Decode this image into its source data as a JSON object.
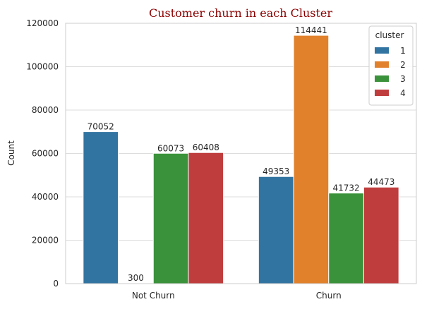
{
  "chart_data": {
    "type": "bar",
    "title": "Customer churn in each Cluster",
    "title_color": "#8b0000",
    "xlabel": "",
    "ylabel": "Count",
    "ylim": [
      0,
      120000
    ],
    "yticks": [
      0,
      20000,
      40000,
      60000,
      80000,
      100000,
      120000
    ],
    "grid": "horizontal",
    "legend_position": "top-right",
    "legend_title": "cluster",
    "categories": [
      "Not Churn",
      "Churn"
    ],
    "series": [
      {
        "name": "1",
        "color": "#3274a1",
        "values": [
          70052,
          49353
        ]
      },
      {
        "name": "2",
        "color": "#e1812c",
        "values": [
          300,
          114441
        ]
      },
      {
        "name": "3",
        "color": "#3a923a",
        "values": [
          60073,
          41732
        ]
      },
      {
        "name": "4",
        "color": "#c03d3e",
        "values": [
          60408,
          44473
        ]
      }
    ]
  }
}
